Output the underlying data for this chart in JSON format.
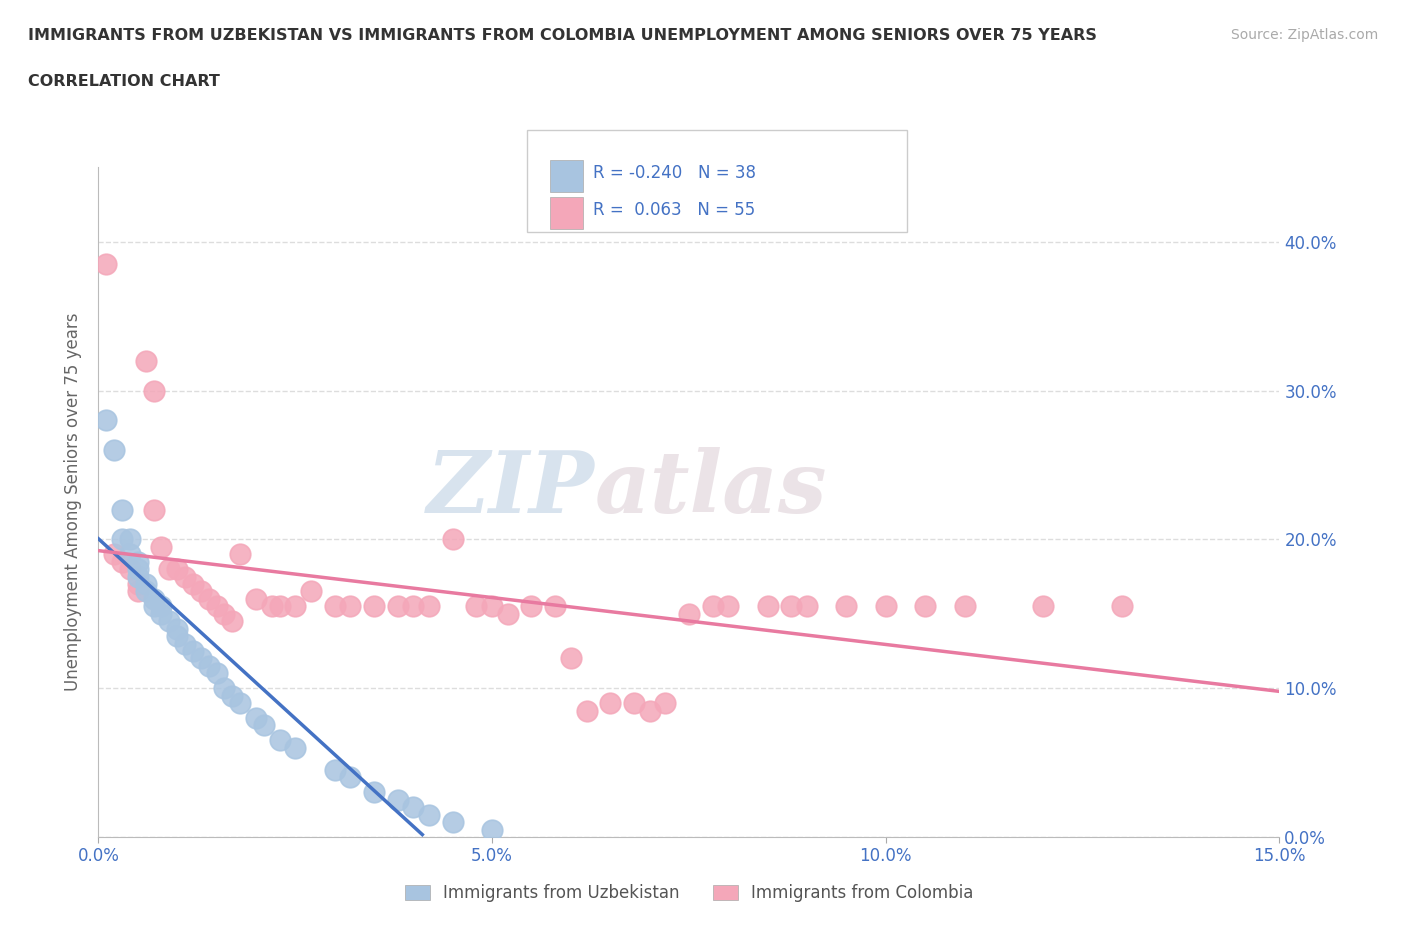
{
  "title1": "IMMIGRANTS FROM UZBEKISTAN VS IMMIGRANTS FROM COLOMBIA UNEMPLOYMENT AMONG SENIORS OVER 75 YEARS",
  "title2": "CORRELATION CHART",
  "ylabel": "Unemployment Among Seniors over 75 years",
  "source": "Source: ZipAtlas.com",
  "uzbekistan_color": "#a8c4e0",
  "uzbekistan_line_color": "#4472c4",
  "colombia_color": "#f4a7b9",
  "colombia_line_color": "#e87aa0",
  "legend_text_color": "#4472c4",
  "R_uzbekistan": -0.24,
  "N_uzbekistan": 38,
  "R_colombia": 0.063,
  "N_colombia": 55,
  "xlim": [
    0.0,
    0.15
  ],
  "ylim": [
    0.0,
    0.45
  ],
  "x_ticks": [
    0.0,
    0.05,
    0.1,
    0.15
  ],
  "x_tick_labels": [
    "0.0%",
    "5.0%",
    "10.0%",
    "15.0%"
  ],
  "y_ticks": [
    0.0,
    0.1,
    0.2,
    0.3,
    0.4
  ],
  "y_tick_labels": [
    "0.0%",
    "10.0%",
    "20.0%",
    "30.0%",
    "40.0%"
  ],
  "uzbekistan_x": [
    0.001,
    0.002,
    0.003,
    0.003,
    0.004,
    0.004,
    0.005,
    0.005,
    0.005,
    0.006,
    0.006,
    0.007,
    0.007,
    0.008,
    0.008,
    0.009,
    0.01,
    0.01,
    0.011,
    0.012,
    0.013,
    0.014,
    0.015,
    0.016,
    0.017,
    0.018,
    0.02,
    0.021,
    0.023,
    0.025,
    0.03,
    0.032,
    0.035,
    0.038,
    0.04,
    0.042,
    0.045,
    0.05
  ],
  "uzbekistan_y": [
    0.28,
    0.26,
    0.22,
    0.2,
    0.2,
    0.19,
    0.185,
    0.18,
    0.175,
    0.17,
    0.165,
    0.16,
    0.155,
    0.155,
    0.15,
    0.145,
    0.14,
    0.135,
    0.13,
    0.125,
    0.12,
    0.115,
    0.11,
    0.1,
    0.095,
    0.09,
    0.08,
    0.075,
    0.065,
    0.06,
    0.045,
    0.04,
    0.03,
    0.025,
    0.02,
    0.015,
    0.01,
    0.005
  ],
  "colombia_x": [
    0.001,
    0.002,
    0.003,
    0.004,
    0.005,
    0.005,
    0.006,
    0.007,
    0.007,
    0.008,
    0.009,
    0.01,
    0.011,
    0.012,
    0.013,
    0.014,
    0.015,
    0.016,
    0.017,
    0.018,
    0.02,
    0.022,
    0.023,
    0.025,
    0.027,
    0.03,
    0.032,
    0.035,
    0.038,
    0.04,
    0.042,
    0.045,
    0.048,
    0.05,
    0.052,
    0.055,
    0.058,
    0.06,
    0.062,
    0.065,
    0.068,
    0.07,
    0.072,
    0.075,
    0.078,
    0.08,
    0.085,
    0.088,
    0.09,
    0.095,
    0.1,
    0.105,
    0.11,
    0.12,
    0.13
  ],
  "colombia_y": [
    0.385,
    0.19,
    0.185,
    0.18,
    0.17,
    0.165,
    0.32,
    0.3,
    0.22,
    0.195,
    0.18,
    0.18,
    0.175,
    0.17,
    0.165,
    0.16,
    0.155,
    0.15,
    0.145,
    0.19,
    0.16,
    0.155,
    0.155,
    0.155,
    0.165,
    0.155,
    0.155,
    0.155,
    0.155,
    0.155,
    0.155,
    0.2,
    0.155,
    0.155,
    0.15,
    0.155,
    0.155,
    0.12,
    0.085,
    0.09,
    0.09,
    0.085,
    0.09,
    0.15,
    0.155,
    0.155,
    0.155,
    0.155,
    0.155,
    0.155,
    0.155,
    0.155,
    0.155,
    0.155,
    0.155
  ],
  "watermark_zip": "ZIP",
  "watermark_atlas": "atlas",
  "background_color": "#ffffff",
  "grid_color": "#dddddd",
  "title_color": "#333333",
  "axis_label_color": "#4472c4",
  "ylabel_color": "#666666"
}
